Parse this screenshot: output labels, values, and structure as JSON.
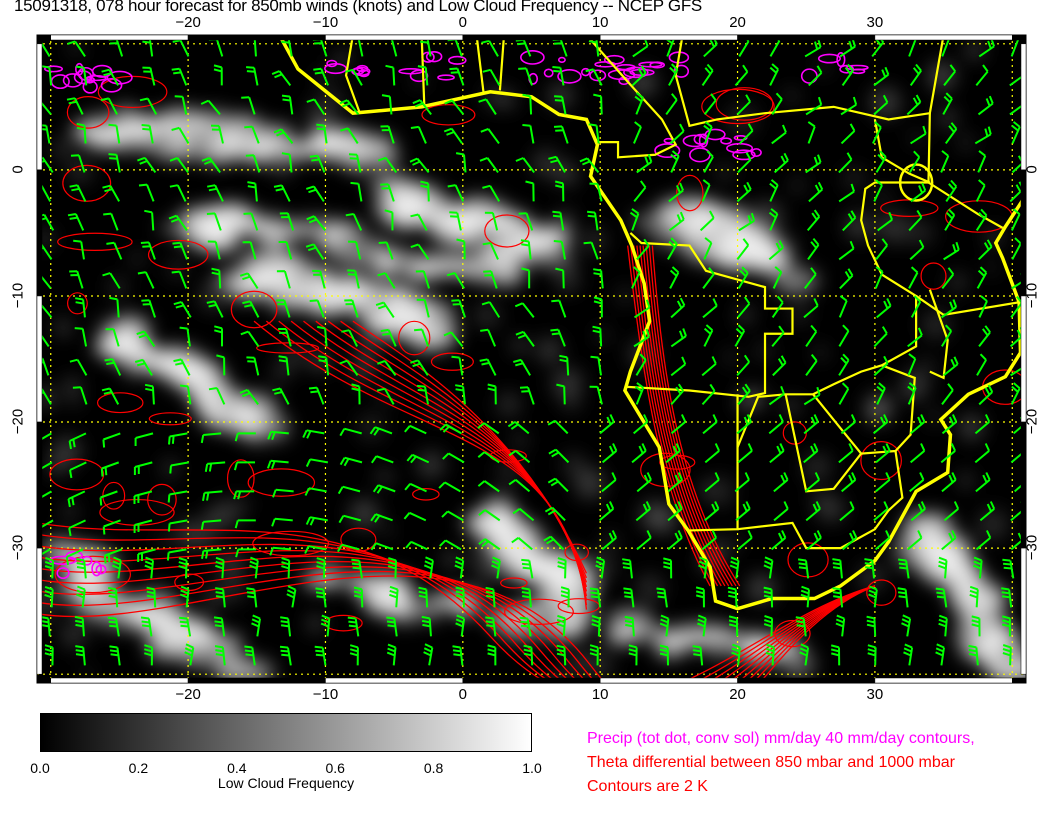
{
  "title": "15091318, 078 hour forecast for 850mb winds (knots) and Low Cloud Frequency -- NCEP GFS",
  "map": {
    "lon_ticks": [
      "−20",
      "−10",
      "0",
      "10",
      "20",
      "30"
    ],
    "lat_ticks": [
      "0",
      "−10",
      "−20",
      "−30"
    ],
    "lon_range": [
      -31,
      41
    ],
    "lat_range": [
      -40.7,
      10.7
    ],
    "colors": {
      "background": "#000000",
      "coastline": "#ffff00",
      "wind_barbs": "#00ff00",
      "theta_contours": "#ff0000",
      "precip": "#ff00ff"
    }
  },
  "colorbar": {
    "labels": [
      "0.0",
      "0.2",
      "0.4",
      "0.6",
      "0.8",
      "1.0"
    ],
    "title": "Low Cloud Frequency",
    "range": [
      0,
      1
    ]
  },
  "legend": {
    "precip": "Precip (tot dot, conv sol) mm/day 40 mm/day contours,",
    "theta": "Theta differential between 850 mbar and 1000 mbar",
    "contours": "Contours are 2 K"
  }
}
